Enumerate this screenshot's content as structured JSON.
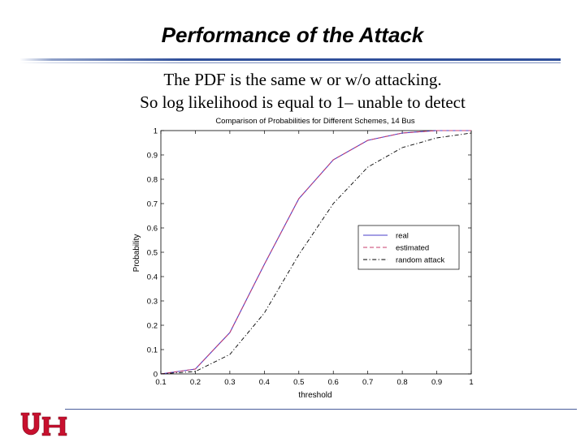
{
  "slide": {
    "title": "Performance of the Attack",
    "lines": [
      "The PDF is the same w or w/o attacking.",
      "So log likelihood is equal to 1– unable to detect"
    ],
    "logo_text": "UH"
  },
  "colors": {
    "title_rule": "#2f4f9a",
    "real": "#4a3cc8",
    "estimated": "#c83c6e",
    "random_attack": "#000000",
    "logo_red": "#c8102e"
  },
  "chart_data": {
    "type": "line",
    "title": "Comparison of Probabilities for Different Schemes, 14 Bus",
    "xlabel": "threshold",
    "ylabel": "Probability",
    "xlim": [
      0.1,
      1
    ],
    "ylim": [
      0,
      1
    ],
    "xticks": [
      "0.1",
      "0.2",
      "0.3",
      "0.4",
      "0.5",
      "0.6",
      "0.7",
      "0.8",
      "0.9",
      "1"
    ],
    "yticks": [
      "0",
      "0.1",
      "0.2",
      "0.3",
      "0.4",
      "0.5",
      "0.6",
      "0.7",
      "0.8",
      "0.9",
      "1"
    ],
    "grid": false,
    "legend_position": "center-right",
    "x": [
      0.1,
      0.2,
      0.3,
      0.4,
      0.5,
      0.6,
      0.7,
      0.8,
      0.9,
      1.0
    ],
    "series": [
      {
        "name": "real",
        "style": "solid",
        "values": [
          0.0,
          0.02,
          0.17,
          0.45,
          0.72,
          0.88,
          0.96,
          0.99,
          1.0,
          1.0
        ]
      },
      {
        "name": "estimated",
        "style": "dashed",
        "values": [
          0.0,
          0.02,
          0.17,
          0.45,
          0.72,
          0.88,
          0.96,
          0.99,
          1.0,
          1.0
        ]
      },
      {
        "name": "random attack",
        "style": "dashdot",
        "values": [
          0.0,
          0.01,
          0.08,
          0.25,
          0.49,
          0.7,
          0.85,
          0.93,
          0.97,
          0.99
        ]
      }
    ]
  }
}
